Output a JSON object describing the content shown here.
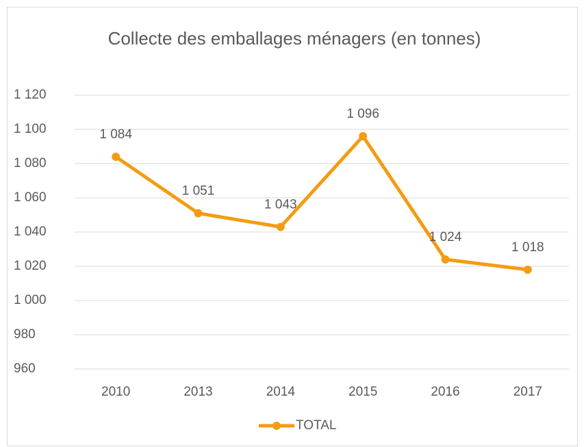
{
  "chart_data": {
    "type": "line",
    "title": "Collecte des emballages ménagers (en tonnes)",
    "categories": [
      "2010",
      "2013",
      "2014",
      "2015",
      "2016",
      "2017"
    ],
    "series": [
      {
        "name": "TOTAL",
        "color": "#f39c12",
        "values": [
          1084,
          1051,
          1043,
          1096,
          1024,
          1018
        ],
        "value_labels": [
          "1 084",
          "1 051",
          "1 043",
          "1 096",
          "1 024",
          "1 018"
        ]
      }
    ],
    "ylim": [
      960,
      1120
    ],
    "yticks": [
      960,
      980,
      {
        "value": 1000,
        "label": "1 000"
      },
      {
        "value": 1020,
        "label": "1 020"
      },
      {
        "value": 1040,
        "label": "1 040"
      },
      {
        "value": 1060,
        "label": "1 060"
      },
      {
        "value": 1080,
        "label": "1 080"
      },
      {
        "value": 1100,
        "label": "1 100"
      },
      {
        "value": 1120,
        "label": "1 120"
      }
    ],
    "grid": true,
    "legend": "bottom"
  }
}
